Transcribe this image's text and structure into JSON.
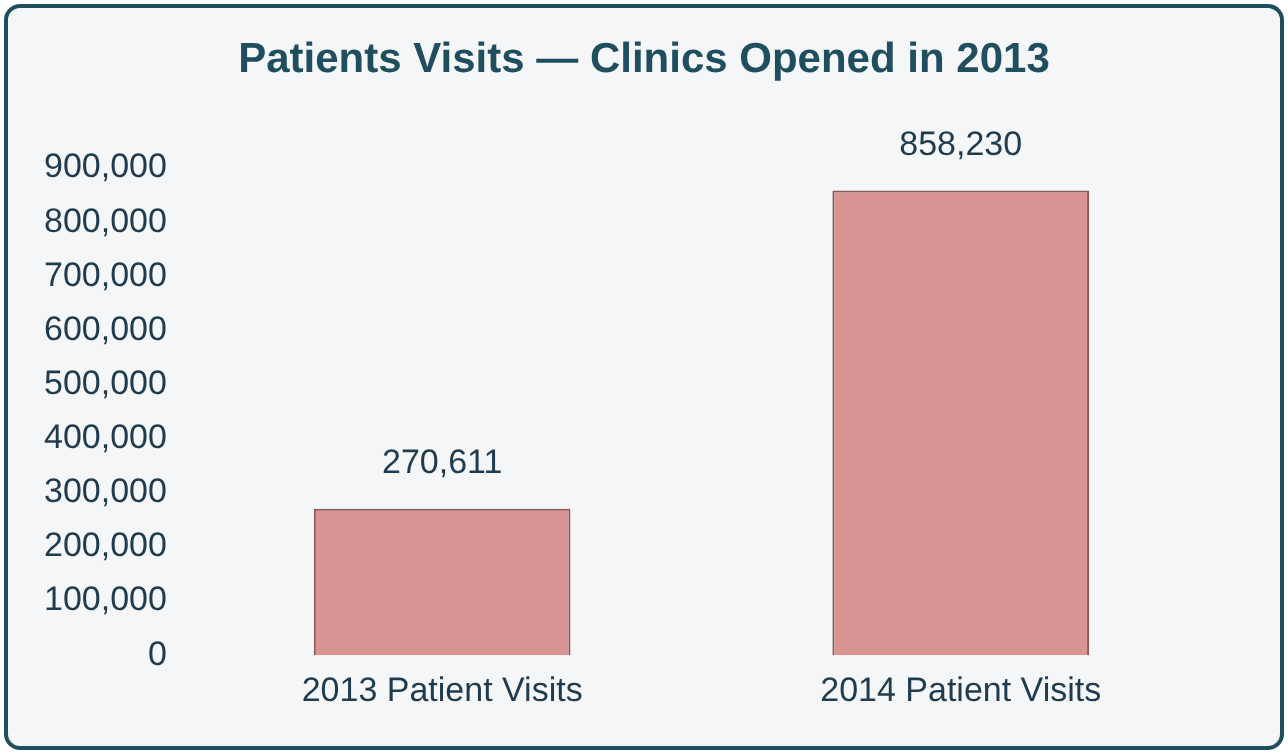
{
  "chart_data": {
    "type": "bar",
    "title": "Patients Visits — Clinics Opened in 2013",
    "categories": [
      "2013 Patient Visits",
      "2014 Patient Visits"
    ],
    "values": [
      270611,
      858230
    ],
    "value_labels": [
      "270,611",
      "858,230"
    ],
    "color": "#d99594",
    "ylim": [
      0,
      900000
    ],
    "yticks": [
      {
        "value": 0,
        "label": "0"
      },
      {
        "value": 100000,
        "label": "100,000"
      },
      {
        "value": 200000,
        "label": "200,000"
      },
      {
        "value": 300000,
        "label": "300,000"
      },
      {
        "value": 400000,
        "label": "400,000"
      },
      {
        "value": 500000,
        "label": "500,000"
      },
      {
        "value": 600000,
        "label": "600,000"
      },
      {
        "value": 700000,
        "label": "700,000"
      },
      {
        "value": 800000,
        "label": "800,000"
      },
      {
        "value": 900000,
        "label": "900,000"
      }
    ],
    "grid": false,
    "legend": false
  }
}
